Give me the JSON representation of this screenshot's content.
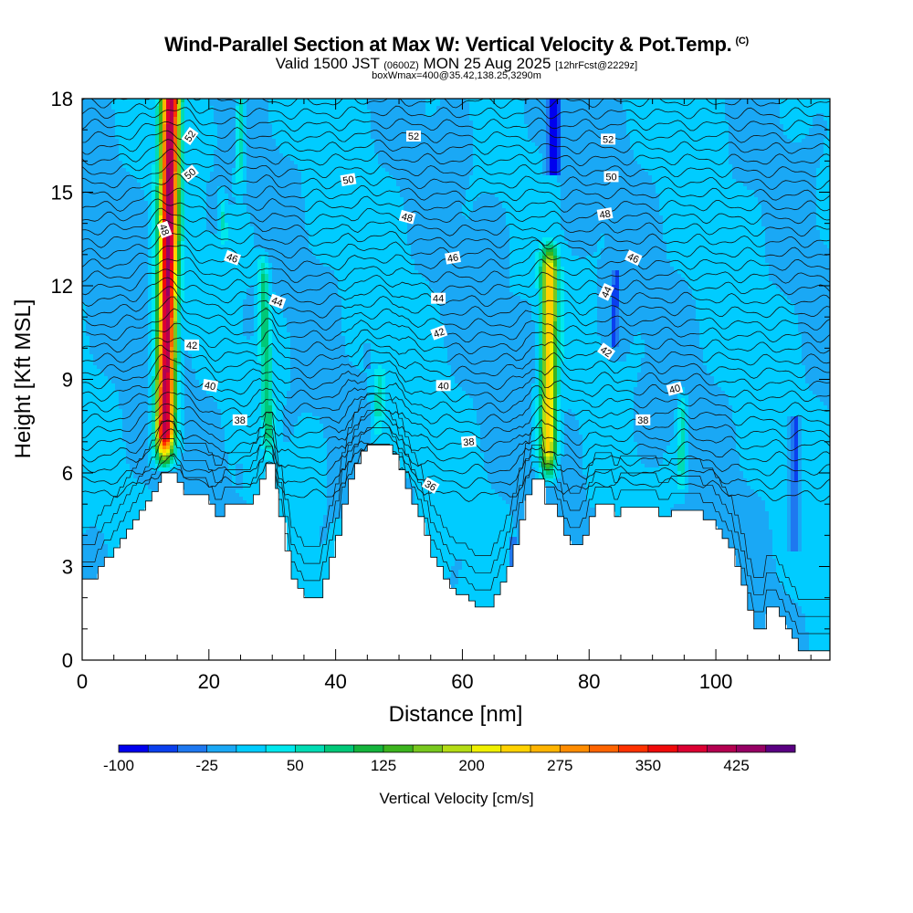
{
  "header": {
    "title": "Wind-Parallel Section at Max W: Vertical Velocity & Pot.Temp.",
    "copyright": "(C)",
    "valid_prefix": "Valid 1500 JST",
    "valid_utc": "(0600Z)",
    "valid_date": "MON 25 Aug 2025",
    "forecast": "[12hrFcst@2229z]",
    "box_info": "boxWmax=400@35.42,138.25,3290m"
  },
  "chart_data": {
    "type": "heatmap",
    "title": "Wind-Parallel Section at Max W: Vertical Velocity & Pot.Temp.",
    "xlabel": "Distance [nm]",
    "ylabel": "Height [Kft MSL]",
    "xlim": [
      0,
      118
    ],
    "ylim": [
      0,
      18
    ],
    "x_ticks": [
      0,
      20,
      40,
      60,
      80,
      100
    ],
    "x_tick_labels": [
      "0",
      "20",
      "40",
      "60",
      "80",
      "100"
    ],
    "y_ticks": [
      0,
      3,
      6,
      9,
      12,
      15,
      18
    ],
    "y_tick_labels": [
      "0",
      "3",
      "6",
      "9",
      "12",
      "15",
      "18"
    ],
    "background_w_cms": 0,
    "terrain_kft": [
      [
        0,
        2.6
      ],
      [
        2.5,
        2.6
      ],
      [
        2.5,
        3.0
      ],
      [
        3.5,
        3.0
      ],
      [
        3.5,
        3.3
      ],
      [
        5,
        3.3
      ],
      [
        5,
        3.6
      ],
      [
        6,
        3.6
      ],
      [
        6,
        3.9
      ],
      [
        7,
        3.9
      ],
      [
        7,
        4.2
      ],
      [
        8,
        4.2
      ],
      [
        8,
        4.5
      ],
      [
        9,
        4.5
      ],
      [
        9,
        4.8
      ],
      [
        10,
        4.8
      ],
      [
        10,
        5.1
      ],
      [
        11,
        5.1
      ],
      [
        11,
        5.4
      ],
      [
        12,
        5.4
      ],
      [
        12,
        5.7
      ],
      [
        12.5,
        5.7
      ],
      [
        12.5,
        6.0
      ],
      [
        15,
        6.0
      ],
      [
        15,
        5.7
      ],
      [
        16,
        5.7
      ],
      [
        16,
        5.3
      ],
      [
        20,
        5.3
      ],
      [
        20,
        5.0
      ],
      [
        21,
        5.0
      ],
      [
        21,
        4.6
      ],
      [
        22.5,
        4.6
      ],
      [
        22.5,
        5.0
      ],
      [
        27,
        5.0
      ],
      [
        27,
        5.3
      ],
      [
        28,
        5.3
      ],
      [
        28,
        5.8
      ],
      [
        29,
        5.8
      ],
      [
        29,
        6.3
      ],
      [
        30.5,
        6.3
      ],
      [
        30.5,
        5.5
      ],
      [
        31,
        5.5
      ],
      [
        31,
        4.6
      ],
      [
        32,
        4.6
      ],
      [
        32,
        3.5
      ],
      [
        33,
        3.5
      ],
      [
        33,
        2.6
      ],
      [
        34,
        2.6
      ],
      [
        34,
        2.3
      ],
      [
        35,
        2.3
      ],
      [
        35,
        2.0
      ],
      [
        38,
        2.0
      ],
      [
        38,
        2.6
      ],
      [
        39,
        2.6
      ],
      [
        39,
        3.3
      ],
      [
        40,
        3.3
      ],
      [
        40,
        4.0
      ],
      [
        41,
        4.0
      ],
      [
        41,
        5.0
      ],
      [
        42,
        5.0
      ],
      [
        42,
        5.8
      ],
      [
        43,
        5.8
      ],
      [
        43,
        6.3
      ],
      [
        44,
        6.3
      ],
      [
        44,
        6.7
      ],
      [
        45,
        6.7
      ],
      [
        45,
        6.9
      ],
      [
        49,
        6.9
      ],
      [
        49,
        6.6
      ],
      [
        50,
        6.6
      ],
      [
        50,
        6.1
      ],
      [
        51,
        6.1
      ],
      [
        51,
        5.5
      ],
      [
        52,
        5.5
      ],
      [
        52,
        5.0
      ],
      [
        53,
        5.0
      ],
      [
        53,
        4.6
      ],
      [
        54,
        4.6
      ],
      [
        54,
        4.0
      ],
      [
        55,
        4.0
      ],
      [
        55,
        3.3
      ],
      [
        56,
        3.3
      ],
      [
        56,
        3.0
      ],
      [
        57,
        3.0
      ],
      [
        57,
        2.6
      ],
      [
        58,
        2.6
      ],
      [
        58,
        2.3
      ],
      [
        59,
        2.3
      ],
      [
        59,
        2.1
      ],
      [
        61,
        2.1
      ],
      [
        61,
        1.9
      ],
      [
        62,
        1.9
      ],
      [
        62,
        1.7
      ],
      [
        65,
        1.7
      ],
      [
        65,
        2.1
      ],
      [
        66,
        2.1
      ],
      [
        66,
        2.5
      ],
      [
        67,
        2.5
      ],
      [
        67,
        3.0
      ],
      [
        68,
        3.0
      ],
      [
        68,
        3.7
      ],
      [
        69,
        3.7
      ],
      [
        69,
        4.5
      ],
      [
        70,
        4.5
      ],
      [
        70,
        5.3
      ],
      [
        71,
        5.3
      ],
      [
        71,
        5.8
      ],
      [
        73,
        5.8
      ],
      [
        73,
        5.0
      ],
      [
        75,
        5.0
      ],
      [
        75,
        4.6
      ],
      [
        76,
        4.6
      ],
      [
        76,
        4.0
      ],
      [
        77,
        4.0
      ],
      [
        77,
        3.7
      ],
      [
        79,
        3.7
      ],
      [
        79,
        4.0
      ],
      [
        80,
        4.0
      ],
      [
        80,
        4.6
      ],
      [
        81,
        4.6
      ],
      [
        81,
        5.0
      ],
      [
        84,
        5.0
      ],
      [
        84,
        4.6
      ],
      [
        85,
        4.6
      ],
      [
        85,
        4.9
      ],
      [
        91,
        4.9
      ],
      [
        91,
        4.6
      ],
      [
        93,
        4.6
      ],
      [
        93,
        4.8
      ],
      [
        98,
        4.8
      ],
      [
        98,
        4.5
      ],
      [
        100,
        4.5
      ],
      [
        100,
        4.2
      ],
      [
        101,
        4.2
      ],
      [
        101,
        3.9
      ],
      [
        102,
        3.9
      ],
      [
        102,
        3.6
      ],
      [
        103,
        3.6
      ],
      [
        103,
        3.0
      ],
      [
        104,
        3.0
      ],
      [
        104,
        2.4
      ],
      [
        105,
        2.4
      ],
      [
        105,
        1.6
      ],
      [
        106,
        1.6
      ],
      [
        106,
        1.0
      ],
      [
        108,
        1.0
      ],
      [
        108,
        1.7
      ],
      [
        110,
        1.7
      ],
      [
        110,
        1.4
      ],
      [
        111,
        1.4
      ],
      [
        111,
        1.0
      ],
      [
        112,
        1.0
      ],
      [
        112,
        0.7
      ],
      [
        113,
        0.7
      ],
      [
        113,
        0.3
      ],
      [
        116,
        0.3
      ],
      [
        116,
        0.3
      ],
      [
        118,
        0.3
      ]
    ],
    "updrafts": [
      {
        "x_bot": 13.0,
        "x_top": 14.0,
        "y_bot": 6.3,
        "y_top": 18,
        "half_width_nm": 1.8,
        "w_max_cms": 430
      },
      {
        "x_bot": 73.5,
        "x_top": 73.8,
        "y_bot": 5.8,
        "y_top": 13.3,
        "half_width_nm": 1.6,
        "w_max_cms": 240
      },
      {
        "x_bot": 29.5,
        "x_top": 28.5,
        "y_bot": 6.4,
        "y_top": 13.0,
        "half_width_nm": 1.1,
        "w_max_cms": 90
      },
      {
        "x_bot": 24.8,
        "x_top": 25.0,
        "y_bot": 15.0,
        "y_top": 18,
        "half_width_nm": 0.8,
        "w_max_cms": 75
      },
      {
        "x_bot": 46.5,
        "x_top": 47.0,
        "y_bot": 7.0,
        "y_top": 9.6,
        "half_width_nm": 1.2,
        "w_max_cms": 60
      },
      {
        "x_bot": 94.5,
        "x_top": 94.7,
        "y_bot": 5.2,
        "y_top": 8.6,
        "half_width_nm": 0.8,
        "w_max_cms": 70
      },
      {
        "x_bot": 22.5,
        "x_top": 22.0,
        "y_bot": 13.0,
        "y_top": 15.0,
        "half_width_nm": 0.7,
        "w_max_cms": 55
      }
    ],
    "downdrafts": [
      {
        "x_bot": 74.5,
        "x_top": 74.5,
        "y_bot": 15.5,
        "y_top": 18,
        "half_width_nm": 1.2,
        "w_min_cms": -100
      },
      {
        "x_bot": 84.0,
        "x_top": 84.2,
        "y_bot": 10.0,
        "y_top": 12.5,
        "half_width_nm": 0.7,
        "w_min_cms": -60
      },
      {
        "x_bot": 112.5,
        "x_top": 112.5,
        "y_bot": 3.5,
        "y_top": 7.8,
        "half_width_nm": 1.0,
        "w_min_cms": -60
      },
      {
        "x_bot": 68.0,
        "x_top": 68.0,
        "y_bot": 2.8,
        "y_top": 4.0,
        "half_width_nm": 0.6,
        "w_min_cms": -60
      },
      {
        "x_bot": 45.0,
        "x_top": 45.0,
        "y_bot": 9.3,
        "y_top": 10.2,
        "half_width_nm": 0.5,
        "w_min_cms": -40
      },
      {
        "x_bot": 24.8,
        "x_top": 24.8,
        "y_bot": 5.5,
        "y_top": 6.3,
        "half_width_nm": 0.4,
        "w_min_cms": -50
      }
    ],
    "isentropes": {
      "count": 36,
      "base_height_kft": 5.7,
      "spacing_kft": 0.37
    },
    "contour_labels": [
      {
        "text": "52",
        "x": 17.0,
        "y": 16.8,
        "angle": -55
      },
      {
        "text": "50",
        "x": 17.0,
        "y": 15.6,
        "angle": -40
      },
      {
        "text": "48",
        "x": 13.0,
        "y": 13.8,
        "angle": 70
      },
      {
        "text": "46",
        "x": 23.7,
        "y": 12.9,
        "angle": 20
      },
      {
        "text": "44",
        "x": 30.8,
        "y": 11.5,
        "angle": 20
      },
      {
        "text": "42",
        "x": 17.3,
        "y": 10.1,
        "angle": 0
      },
      {
        "text": "40",
        "x": 20.2,
        "y": 8.8,
        "angle": 10
      },
      {
        "text": "38",
        "x": 24.9,
        "y": 7.7,
        "angle": 0
      },
      {
        "text": "52",
        "x": 52.3,
        "y": 16.8,
        "angle": 0
      },
      {
        "text": "50",
        "x": 42.0,
        "y": 15.4,
        "angle": -10
      },
      {
        "text": "48",
        "x": 51.3,
        "y": 14.2,
        "angle": 15
      },
      {
        "text": "46",
        "x": 58.5,
        "y": 12.9,
        "angle": -10
      },
      {
        "text": "44",
        "x": 56.2,
        "y": 11.6,
        "angle": 0
      },
      {
        "text": "42",
        "x": 56.3,
        "y": 10.5,
        "angle": -20
      },
      {
        "text": "40",
        "x": 57.0,
        "y": 8.8,
        "angle": 0
      },
      {
        "text": "38",
        "x": 61.0,
        "y": 7.0,
        "angle": -5
      },
      {
        "text": "36",
        "x": 55.0,
        "y": 5.6,
        "angle": 30
      },
      {
        "text": "52",
        "x": 83.0,
        "y": 16.7,
        "angle": 0
      },
      {
        "text": "50",
        "x": 83.5,
        "y": 15.5,
        "angle": 0
      },
      {
        "text": "48",
        "x": 82.5,
        "y": 14.3,
        "angle": -10
      },
      {
        "text": "46",
        "x": 87.0,
        "y": 12.9,
        "angle": 25
      },
      {
        "text": "44",
        "x": 82.7,
        "y": 11.8,
        "angle": -65
      },
      {
        "text": "42",
        "x": 82.7,
        "y": 9.9,
        "angle": 35
      },
      {
        "text": "40",
        "x": 93.5,
        "y": 8.7,
        "angle": -15
      },
      {
        "text": "38",
        "x": 88.5,
        "y": 7.7,
        "angle": 0
      }
    ],
    "colorbar": {
      "label": "Vertical Velocity [cm/s]",
      "min": -100,
      "max": 475,
      "step": 25,
      "tick_values": [
        -100,
        -25,
        50,
        125,
        200,
        275,
        350,
        425
      ],
      "tick_labels": [
        "-100",
        "-25",
        "50",
        "125",
        "200",
        "275",
        "350",
        "425"
      ],
      "colors": [
        "#0000ee",
        "#0a3fee",
        "#1e78f0",
        "#1aa8f5",
        "#00ccff",
        "#00e8ee",
        "#00dcb4",
        "#00c878",
        "#14b43c",
        "#3cb41e",
        "#78c81e",
        "#b4dc14",
        "#f0f000",
        "#ffd200",
        "#ffb400",
        "#ff8c00",
        "#ff6400",
        "#ff3200",
        "#f00a0a",
        "#dc0032",
        "#b40050",
        "#960064",
        "#5a0082"
      ]
    }
  }
}
